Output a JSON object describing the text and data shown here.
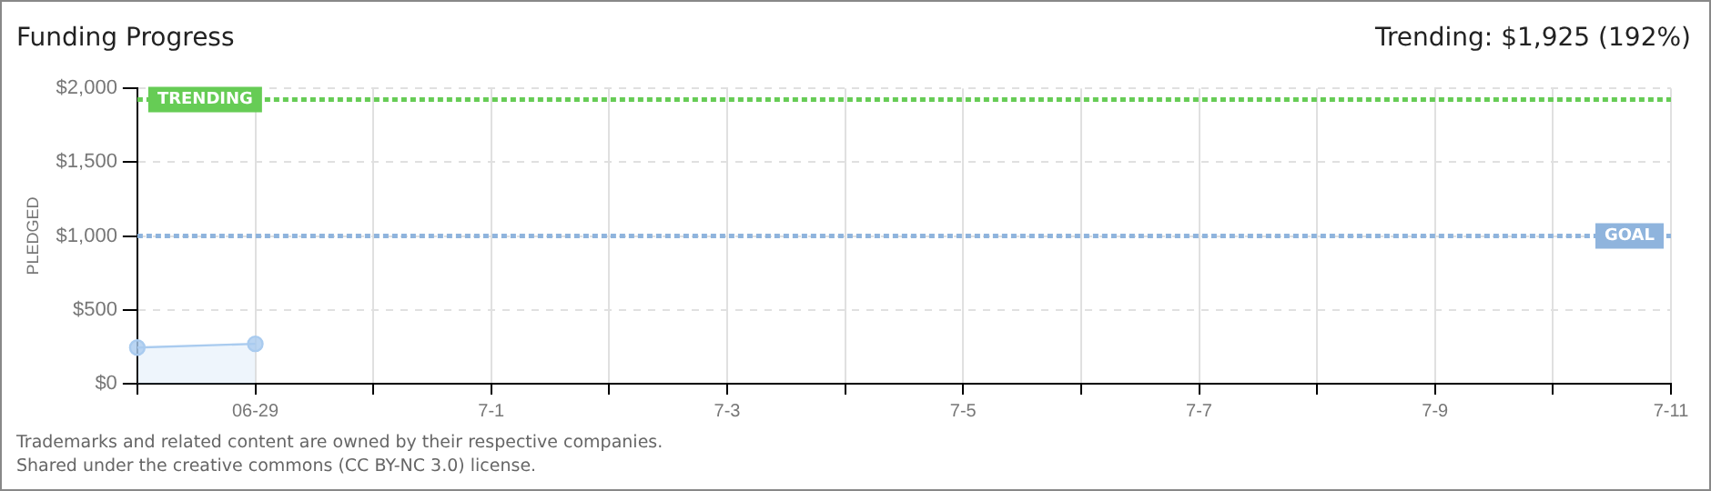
{
  "chart_data": {
    "type": "area",
    "title": "Funding Progress",
    "ylabel": "PLEDGED",
    "categories": [
      null,
      "06-29",
      null,
      "7-1",
      null,
      "7-3",
      null,
      "7-5",
      null,
      "7-7",
      null,
      "7-9",
      null,
      "7-11"
    ],
    "series": [
      {
        "color": "#a9cbef",
        "values": [
          245,
          270,
          null,
          null,
          null,
          null,
          null,
          null,
          null,
          null,
          null,
          null,
          null,
          null
        ]
      }
    ],
    "ylim": [
      0,
      2000
    ],
    "yticks": [
      {
        "value": 0,
        "label": "$0"
      },
      {
        "value": 500,
        "label": "$500"
      },
      {
        "value": 1000,
        "label": "$1,000"
      },
      {
        "value": 1500,
        "label": "$1,500"
      },
      {
        "value": 2000,
        "label": "$2,000"
      }
    ],
    "ref_lines": [
      {
        "axis": "y",
        "value": 1925,
        "label": "TRENDING",
        "color": "#66cc55",
        "line_style": "dotted"
      },
      {
        "axis": "y",
        "value": 1000,
        "label": "GOAL",
        "color": "#8fb4dd",
        "line_style": "dotted"
      }
    ],
    "annotations": [
      "Trending: $1,925 (192%)",
      "Trademarks and related content are owned by their respective companies.",
      "Shared under the creative commons (CC BY-NC 3.0) license."
    ],
    "grid": true,
    "marker": "circle",
    "legend": false
  }
}
